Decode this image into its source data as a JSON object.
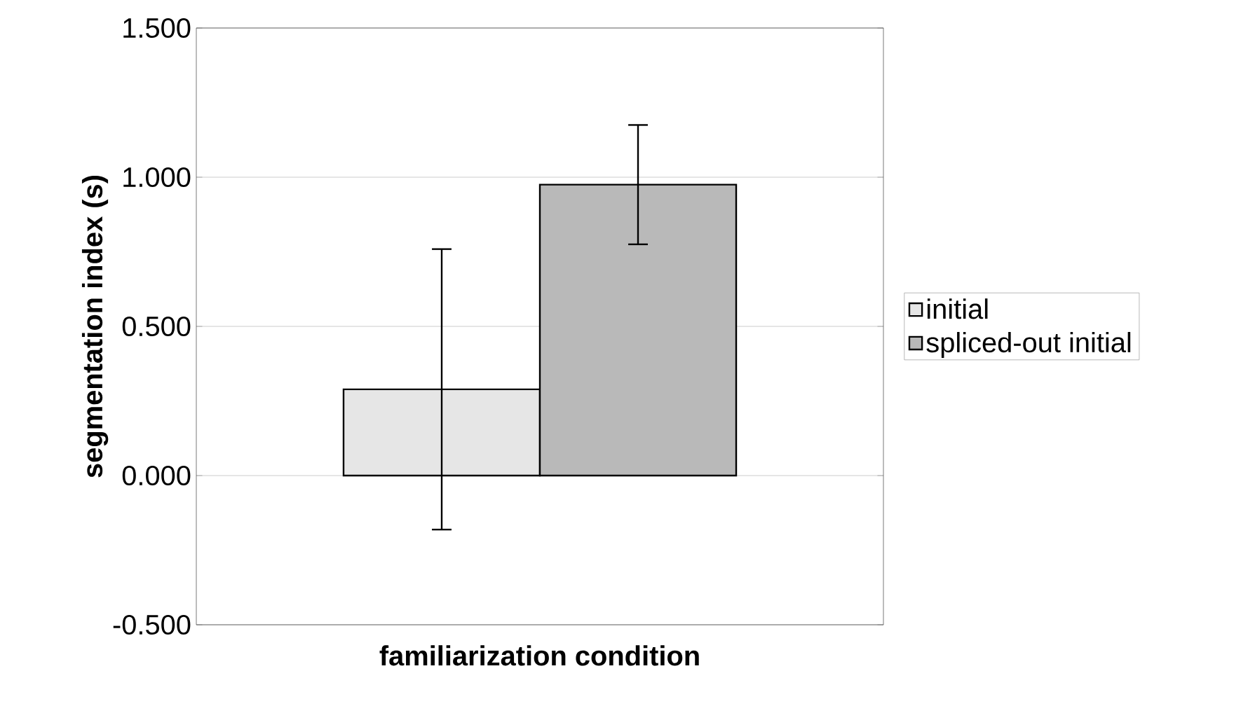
{
  "chart_data": {
    "type": "bar",
    "xlabel": "familiarization condition",
    "ylabel": "segmentation index (s)",
    "categories": [
      null
    ],
    "series": [
      {
        "name": "initial",
        "color": "#e6e6e6",
        "values": [
          0.289
        ],
        "errors": [
          0.47
        ]
      },
      {
        "name": "spliced-out initial",
        "color": "#b9b9b9",
        "values": [
          0.975
        ],
        "errors": [
          0.2
        ]
      }
    ],
    "ylim": [
      -0.5,
      1.5
    ],
    "yticks": [
      {
        "value": -0.5,
        "label": "-0.500"
      },
      {
        "value": 0,
        "label": "0.000"
      },
      {
        "value": 0.5,
        "label": "0.500"
      },
      {
        "value": 1,
        "label": "1.000"
      },
      {
        "value": 1.5,
        "label": "1.500"
      }
    ],
    "grid": "y",
    "legend": "right"
  }
}
